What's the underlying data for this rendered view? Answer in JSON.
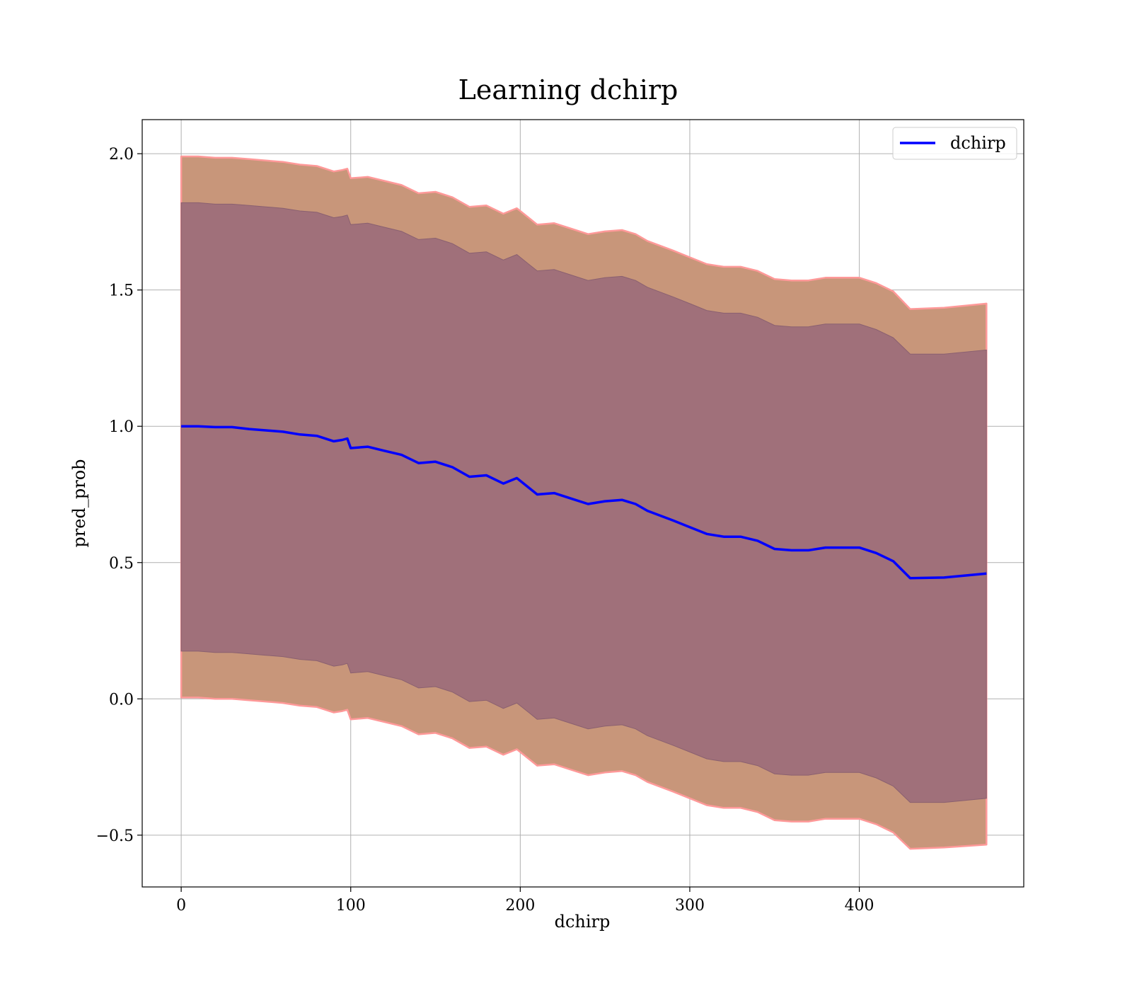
{
  "chart_data": {
    "type": "area",
    "title": "Learning dchirp",
    "xlabel": "dchirp",
    "ylabel": "pred_prob",
    "xlim": [
      -23,
      497
    ],
    "ylim": [
      -0.69,
      2.125
    ],
    "xticks": [
      0,
      100,
      200,
      300,
      400
    ],
    "yticks": [
      -0.5,
      0.0,
      0.5,
      1.0,
      1.5,
      2.0
    ],
    "xtick_labels": [
      "0",
      "100",
      "200",
      "300",
      "400"
    ],
    "ytick_labels": [
      "−0.5",
      "0.0",
      "0.5",
      "1.0",
      "1.5",
      "2.0"
    ],
    "grid": true,
    "legend_position": "top-right",
    "colors": {
      "line": "#0000ff",
      "outer_band": "#c8967a",
      "outer_band_edge": "#ff9999",
      "inner_band": "#a0707a"
    },
    "x": [
      0,
      10,
      20,
      30,
      40,
      50,
      60,
      70,
      80,
      90,
      95,
      98,
      100,
      110,
      120,
      130,
      140,
      150,
      160,
      170,
      180,
      190,
      198,
      205,
      210,
      220,
      230,
      240,
      250,
      260,
      268,
      275,
      290,
      300,
      310,
      320,
      330,
      340,
      350,
      360,
      370,
      380,
      390,
      400,
      410,
      420,
      430,
      450,
      475
    ],
    "series": [
      {
        "name": "dchirp",
        "values": [
          1.0,
          1.0,
          0.997,
          0.997,
          0.99,
          0.985,
          0.98,
          0.97,
          0.965,
          0.945,
          0.95,
          0.955,
          0.92,
          0.925,
          0.91,
          0.895,
          0.865,
          0.87,
          0.85,
          0.815,
          0.82,
          0.79,
          0.81,
          0.775,
          0.75,
          0.755,
          0.735,
          0.715,
          0.725,
          0.73,
          0.715,
          0.69,
          0.655,
          0.63,
          0.605,
          0.595,
          0.595,
          0.58,
          0.55,
          0.545,
          0.545,
          0.555,
          0.555,
          0.555,
          0.535,
          0.505,
          0.443,
          0.445,
          0.46
        ]
      }
    ],
    "bands": [
      {
        "upper": [
          1.99,
          1.99,
          1.985,
          1.985,
          1.98,
          1.975,
          1.97,
          1.96,
          1.955,
          1.935,
          1.94,
          1.945,
          1.91,
          1.915,
          1.9,
          1.885,
          1.855,
          1.86,
          1.84,
          1.805,
          1.81,
          1.78,
          1.8,
          1.765,
          1.74,
          1.745,
          1.725,
          1.705,
          1.715,
          1.72,
          1.705,
          1.68,
          1.645,
          1.62,
          1.595,
          1.585,
          1.585,
          1.57,
          1.54,
          1.535,
          1.535,
          1.545,
          1.545,
          1.545,
          1.525,
          1.495,
          1.43,
          1.435,
          1.45
        ],
        "lower": [
          0.005,
          0.005,
          0.0,
          0.0,
          -0.005,
          -0.01,
          -0.015,
          -0.025,
          -0.03,
          -0.05,
          -0.045,
          -0.04,
          -0.075,
          -0.07,
          -0.085,
          -0.1,
          -0.13,
          -0.125,
          -0.145,
          -0.18,
          -0.175,
          -0.205,
          -0.185,
          -0.22,
          -0.245,
          -0.24,
          -0.26,
          -0.28,
          -0.27,
          -0.265,
          -0.28,
          -0.305,
          -0.34,
          -0.365,
          -0.39,
          -0.4,
          -0.4,
          -0.415,
          -0.445,
          -0.45,
          -0.45,
          -0.44,
          -0.44,
          -0.44,
          -0.46,
          -0.49,
          -0.55,
          -0.545,
          -0.535
        ]
      },
      {
        "upper": [
          1.82,
          1.82,
          1.815,
          1.815,
          1.81,
          1.805,
          1.8,
          1.79,
          1.785,
          1.765,
          1.77,
          1.775,
          1.74,
          1.745,
          1.73,
          1.715,
          1.685,
          1.69,
          1.67,
          1.635,
          1.64,
          1.61,
          1.63,
          1.595,
          1.57,
          1.575,
          1.555,
          1.535,
          1.545,
          1.55,
          1.535,
          1.51,
          1.475,
          1.45,
          1.425,
          1.415,
          1.415,
          1.4,
          1.37,
          1.365,
          1.365,
          1.375,
          1.375,
          1.375,
          1.355,
          1.325,
          1.265,
          1.265,
          1.28
        ],
        "lower": [
          0.175,
          0.175,
          0.17,
          0.17,
          0.165,
          0.16,
          0.155,
          0.145,
          0.14,
          0.12,
          0.125,
          0.13,
          0.095,
          0.1,
          0.085,
          0.07,
          0.04,
          0.045,
          0.025,
          -0.01,
          -0.005,
          -0.035,
          -0.015,
          -0.05,
          -0.075,
          -0.07,
          -0.09,
          -0.11,
          -0.1,
          -0.095,
          -0.11,
          -0.135,
          -0.17,
          -0.195,
          -0.22,
          -0.23,
          -0.23,
          -0.245,
          -0.275,
          -0.28,
          -0.28,
          -0.27,
          -0.27,
          -0.27,
          -0.29,
          -0.32,
          -0.38,
          -0.38,
          -0.365
        ]
      }
    ]
  }
}
